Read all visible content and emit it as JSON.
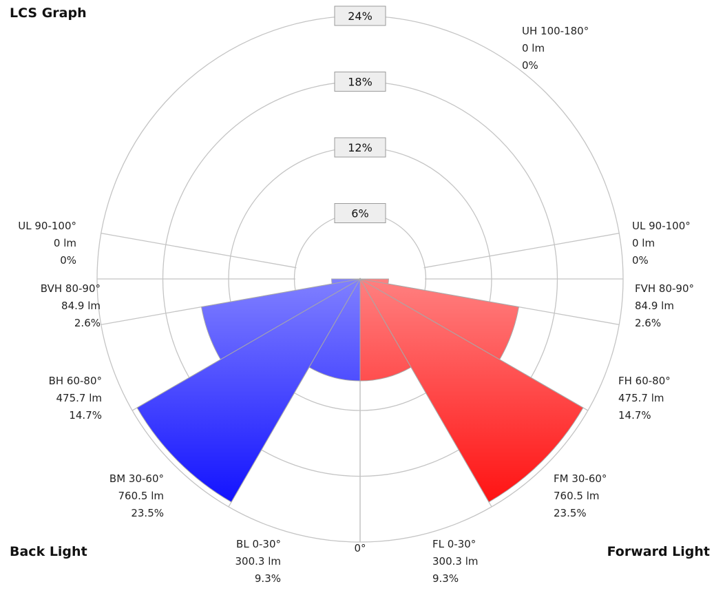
{
  "title": "LCS Graph",
  "back_title": "Back Light",
  "forward_title": "Forward Light",
  "chart_data": {
    "type": "polar-bar",
    "title": "LCS Graph",
    "radial_max_percent": 24,
    "rings": [
      "6%",
      "12%",
      "18%",
      "24%"
    ],
    "ring_values": [
      6,
      12,
      18,
      24
    ],
    "bottom_angle_label": "0°",
    "colors": {
      "back": "#0000ff",
      "forward": "#ff0000",
      "back_light": "#8080ff",
      "forward_light": "#ff8080"
    },
    "zones": [
      {
        "side": "forward",
        "name": "FL 0-30°",
        "deg_from": 0,
        "deg_to": 30,
        "lumens": "300.3 lm",
        "percent_label": "9.3%",
        "percent": 9.3
      },
      {
        "side": "forward",
        "name": "FM 30-60°",
        "deg_from": 30,
        "deg_to": 60,
        "lumens": "760.5 lm",
        "percent_label": "23.5%",
        "percent": 23.5
      },
      {
        "side": "forward",
        "name": "FH 60-80°",
        "deg_from": 60,
        "deg_to": 80,
        "lumens": "475.7 lm",
        "percent_label": "14.7%",
        "percent": 14.7
      },
      {
        "side": "forward",
        "name": "FVH 80-90°",
        "deg_from": 80,
        "deg_to": 90,
        "lumens": "84.9 lm",
        "percent_label": "2.6%",
        "percent": 2.6
      },
      {
        "side": "forward",
        "name": "UL 90-100°",
        "deg_from": 90,
        "deg_to": 100,
        "lumens": "0 lm",
        "percent_label": "0%",
        "percent": 0
      },
      {
        "side": "up",
        "name": "UH 100-180°",
        "deg_from": 100,
        "deg_to": 180,
        "lumens": "0 lm",
        "percent_label": "0%",
        "percent": 0
      },
      {
        "side": "back",
        "name": "UL 90-100°",
        "deg_from": 90,
        "deg_to": 100,
        "lumens": "0 lm",
        "percent_label": "0%",
        "percent": 0
      },
      {
        "side": "back",
        "name": "BVH 80-90°",
        "deg_from": 80,
        "deg_to": 90,
        "lumens": "84.9 lm",
        "percent_label": "2.6%",
        "percent": 2.6
      },
      {
        "side": "back",
        "name": "BH 60-80°",
        "deg_from": 60,
        "deg_to": 80,
        "lumens": "475.7 lm",
        "percent_label": "14.7%",
        "percent": 14.7
      },
      {
        "side": "back",
        "name": "BM 30-60°",
        "deg_from": 30,
        "deg_to": 60,
        "lumens": "760.5 lm",
        "percent_label": "23.5%",
        "percent": 23.5
      },
      {
        "side": "back",
        "name": "BL 0-30°",
        "deg_from": 0,
        "deg_to": 30,
        "lumens": "300.3 lm",
        "percent_label": "9.3%",
        "percent": 9.3
      }
    ]
  }
}
